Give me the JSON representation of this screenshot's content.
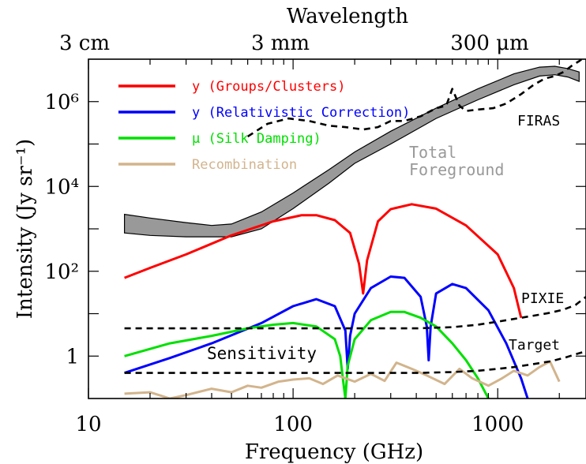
{
  "chart_data": {
    "type": "line",
    "xscale": "log",
    "yscale": "log",
    "xlabel": "Frequency (GHz)",
    "ylabel": "Intensity (Jy sr⁻¹)",
    "top_axis_label": "Wavelength",
    "xlim": [
      10,
      2700
    ],
    "ylim": [
      0.1,
      10000000
    ],
    "x_tick_labels": [
      "10",
      "100",
      "1000"
    ],
    "top_tick_labels": [
      "3 cm",
      "3 mm",
      "300 μm"
    ],
    "y_tick_labels": [
      "1",
      "10²",
      "10⁴",
      "10⁶"
    ],
    "legend_placement": "top-left",
    "legend": [
      {
        "label": "y (Groups/Clusters)",
        "color": "#ff0000"
      },
      {
        "label": "y (Relativistic Correction)",
        "color": "#0000ff"
      },
      {
        "label": "μ (Silk Damping)",
        "color": "#00e000"
      },
      {
        "label": "Recombination",
        "color": "#d2b48c"
      }
    ],
    "annotations": {
      "firas": "FIRAS",
      "total_foreground_line1": "Total",
      "total_foreground_line2": "Foreground",
      "pixie": "PIXIE",
      "target": "Target",
      "sensitivity": "Sensitivity"
    },
    "series": [
      {
        "name": "y (Groups/Clusters)",
        "color": "#ff0000",
        "x": [
          15,
          20,
          30,
          50,
          80,
          110,
          130,
          160,
          190,
          210,
          220,
          230,
          260,
          300,
          380,
          500,
          700,
          1000,
          1200,
          1300
        ],
        "y": [
          70,
          120,
          250,
          700,
          1500,
          2100,
          2100,
          1600,
          800,
          150,
          30,
          180,
          1500,
          2900,
          3800,
          3000,
          1200,
          250,
          40,
          8
        ]
      },
      {
        "name": "y (Relativistic Correction)",
        "color": "#0000ff",
        "x": [
          15,
          25,
          40,
          70,
          100,
          130,
          160,
          180,
          185,
          190,
          200,
          240,
          300,
          350,
          420,
          450,
          460,
          470,
          500,
          600,
          700,
          900,
          1100,
          1300,
          1400
        ],
        "y": [
          0.4,
          0.9,
          2,
          6,
          15,
          22,
          15,
          4,
          0.5,
          3,
          10,
          40,
          75,
          70,
          25,
          5,
          0.8,
          5,
          30,
          50,
          40,
          12,
          2,
          0.3,
          0.1
        ]
      },
      {
        "name": "μ (Silk Damping)",
        "color": "#00e000",
        "x": [
          15,
          25,
          40,
          60,
          80,
          100,
          130,
          160,
          170,
          175,
          180,
          185,
          200,
          240,
          300,
          350,
          420,
          500,
          600,
          700,
          800,
          900
        ],
        "y": [
          1,
          2,
          3,
          4.5,
          5.5,
          6,
          5,
          2.5,
          1,
          0.3,
          0.1,
          0.6,
          2.5,
          7,
          11,
          11,
          8,
          5,
          2,
          0.8,
          0.3,
          0.1
        ]
      },
      {
        "name": "Recombination",
        "color": "#d2b48c",
        "x": [
          15,
          20,
          25,
          30,
          40,
          50,
          60,
          70,
          85,
          100,
          120,
          140,
          165,
          200,
          240,
          280,
          320,
          380,
          450,
          550,
          650,
          750,
          900,
          1050,
          1200,
          1400,
          1600,
          1800,
          2000
        ],
        "y": [
          0.13,
          0.14,
          0.1,
          0.12,
          0.17,
          0.14,
          0.2,
          0.18,
          0.25,
          0.28,
          0.3,
          0.22,
          0.35,
          0.25,
          0.38,
          0.26,
          0.7,
          0.5,
          0.35,
          0.22,
          0.5,
          0.3,
          0.2,
          0.3,
          0.45,
          0.35,
          0.55,
          0.75,
          0.25
        ]
      },
      {
        "name": "FIRAS",
        "color": "#000000",
        "dashed": true,
        "x": [
          60,
          75,
          95,
          120,
          150,
          180,
          220,
          260,
          300,
          350,
          420,
          500,
          560,
          600,
          650,
          700,
          800,
          950,
          1100,
          1300,
          1500,
          1700,
          1900,
          2100,
          2300,
          2500,
          2700
        ],
        "y": [
          150000,
          300000,
          400000,
          350000,
          270000,
          250000,
          220000,
          250000,
          350000,
          350000,
          450000,
          700000,
          800000,
          2000000,
          800000,
          600000,
          650000,
          700000,
          900000,
          1500000,
          2500000,
          3500000,
          4000000,
          5000000,
          7000000,
          9000000,
          12000000
        ]
      },
      {
        "name": "PIXIE",
        "color": "#000000",
        "dashed": true,
        "x": [
          15,
          50,
          100,
          200,
          400,
          600,
          800,
          1000,
          1200,
          1500,
          1800,
          2100,
          2400,
          2700
        ],
        "y": [
          4.5,
          4.5,
          4.5,
          4.5,
          4.5,
          4.8,
          5.5,
          6.5,
          7.5,
          9,
          10.5,
          12.5,
          16,
          25
        ]
      },
      {
        "name": "Target",
        "color": "#000000",
        "dashed": true,
        "x": [
          15,
          50,
          100,
          200,
          400,
          600,
          800,
          1000,
          1200,
          1500,
          1800,
          2100,
          2400,
          2700
        ],
        "y": [
          0.4,
          0.4,
          0.4,
          0.4,
          0.4,
          0.42,
          0.45,
          0.5,
          0.55,
          0.65,
          0.75,
          0.9,
          1.1,
          1.3
        ]
      }
    ],
    "foreground_band": {
      "label": "Total Foreground",
      "color": "#999999",
      "x": [
        15,
        20,
        30,
        40,
        50,
        70,
        100,
        150,
        200,
        300,
        500,
        800,
        1200,
        1600,
        1900,
        2200,
        2500
      ],
      "y_upper": [
        2200,
        1800,
        1400,
        1200,
        1300,
        2500,
        7000,
        25000,
        65000,
        200000,
        700000,
        2000000,
        4500000,
        6500000,
        6800000,
        6000000,
        5000000
      ],
      "y_lower": [
        800,
        700,
        650,
        650,
        650,
        1000,
        3000,
        12000,
        35000,
        100000,
        400000,
        1100000,
        2500000,
        4000000,
        4300000,
        3800000,
        3000000
      ]
    }
  }
}
